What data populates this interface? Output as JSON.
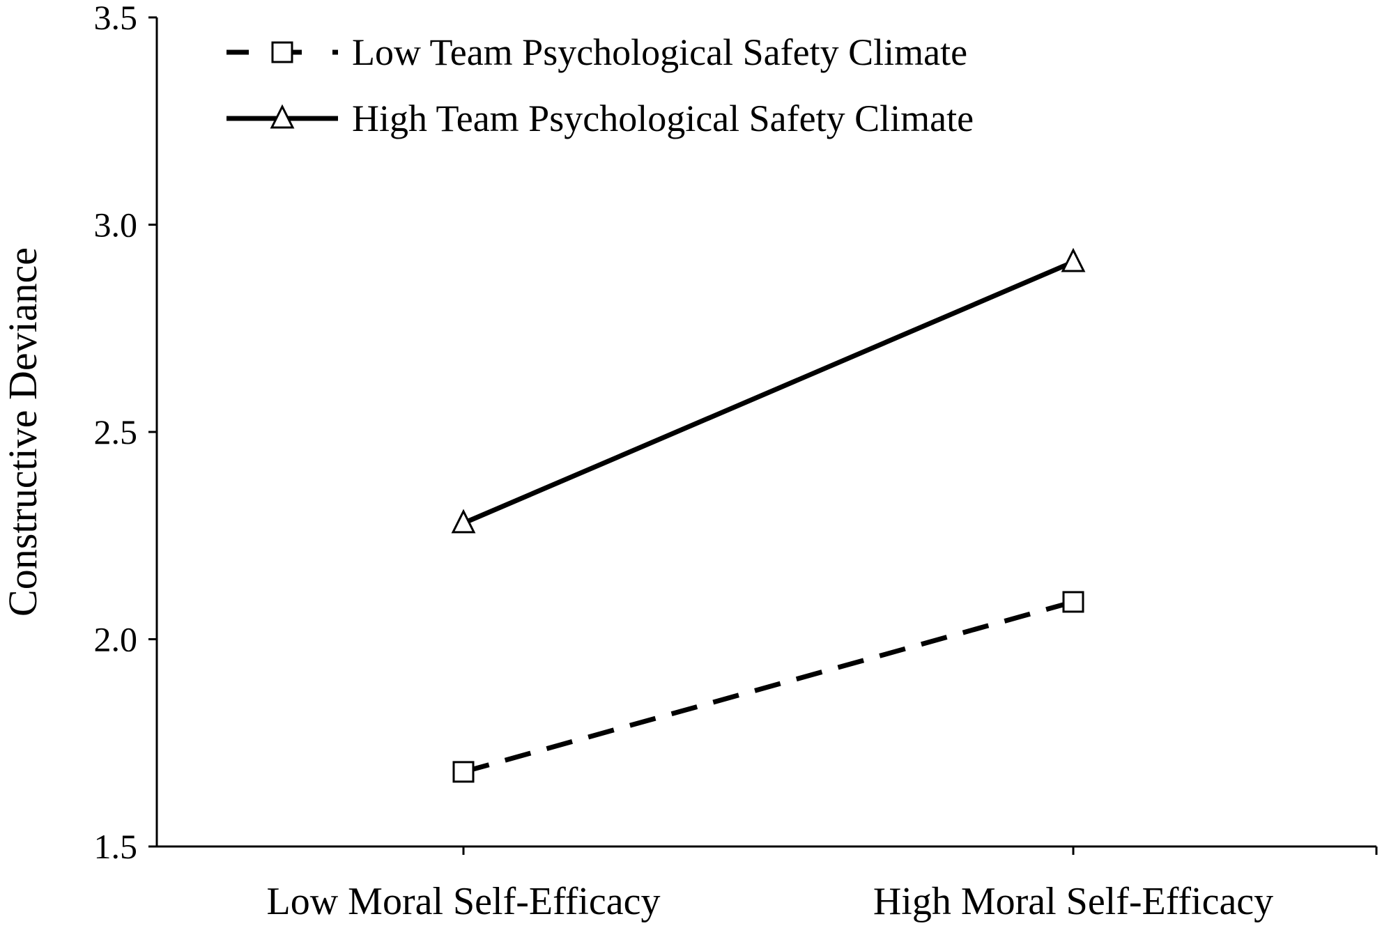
{
  "chart_data": {
    "type": "line",
    "title": "",
    "xlabel": "",
    "ylabel": "Constructive Deviance",
    "categories": [
      "Low Moral Self-Efficacy",
      "High Moral Self-Efficacy"
    ],
    "ylim": [
      1.5,
      3.5
    ],
    "yticks": [
      "1.5",
      "2.0",
      "2.5",
      "3.0",
      "3.5"
    ],
    "grid": false,
    "legend_position": "top-left",
    "series": [
      {
        "name": "Low Team Psychological Safety Climate",
        "values": [
          1.68,
          2.09
        ],
        "line_style": "dashed",
        "marker": "square",
        "color": "#000000"
      },
      {
        "name": "High Team Psychological Safety Climate",
        "values": [
          2.28,
          2.91
        ],
        "line_style": "solid",
        "marker": "triangle",
        "color": "#000000"
      }
    ]
  }
}
